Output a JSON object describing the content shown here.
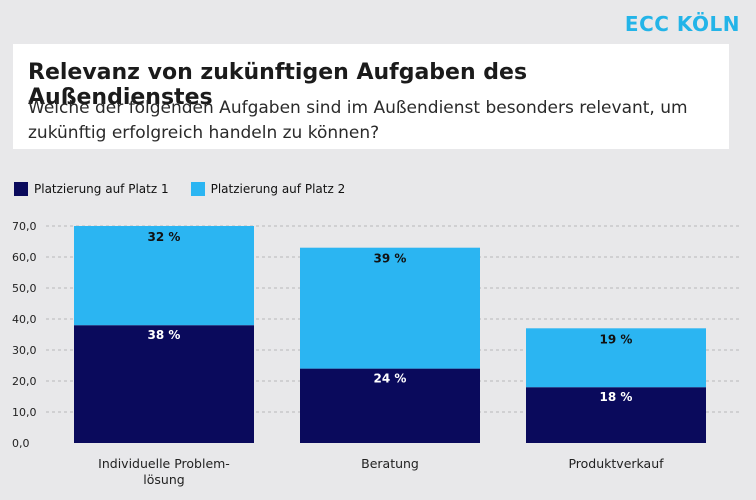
{
  "brand": "ECC KÖLN",
  "title": "Relevanz von zukünftigen Aufgaben des Außendienstes",
  "subtitle_line1": "Welche der folgenden Aufgaben sind im Außendienst besonders relevant, um",
  "subtitle_line2": "zukünftig erfolgreich handeln zu können?",
  "colors": {
    "series1": "#0a0a5c",
    "series2": "#2bb5f2",
    "label_on_dark": "#ffffff",
    "label_on_light": "#111111",
    "grid": "#b7b7bb",
    "brand": "#23b4e8"
  },
  "chart_data": {
    "type": "bar",
    "stacked": true,
    "categories": [
      [
        "Individuelle Problem-",
        "lösung"
      ],
      [
        "Beratung"
      ],
      [
        "Produktverkauf"
      ]
    ],
    "series": [
      {
        "name": "Platzierung auf Platz 1",
        "values": [
          38,
          24,
          18
        ],
        "labels": [
          "38 %",
          "24 %",
          "18 %"
        ]
      },
      {
        "name": "Platzierung auf Platz 2",
        "values": [
          32,
          39,
          19
        ],
        "labels": [
          "32 %",
          "39 %",
          "19 %"
        ]
      }
    ],
    "yticks": [
      "0,0",
      "10,0",
      "20,0",
      "30,0",
      "40,0",
      "50,0",
      "60,0",
      "70,0"
    ],
    "ytick_values": [
      0,
      10,
      20,
      30,
      40,
      50,
      60,
      70
    ],
    "ylim": [
      0,
      70
    ],
    "grid": true,
    "legend_position": "top-left"
  }
}
